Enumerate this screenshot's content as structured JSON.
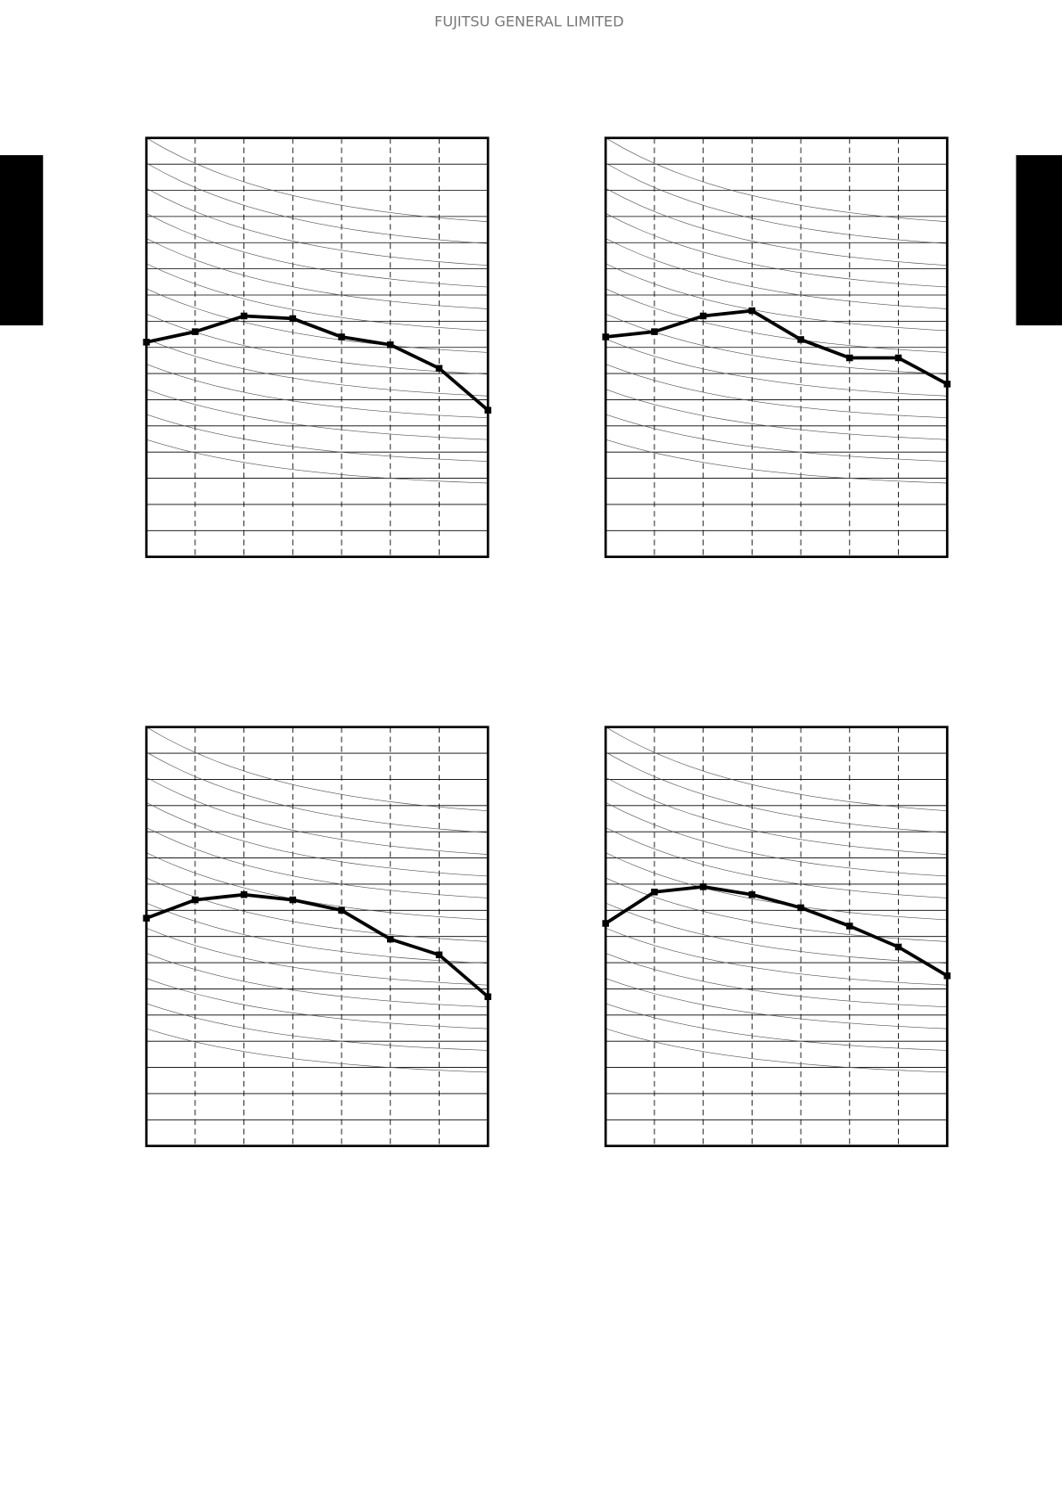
{
  "header": "FUJITSU GENERAL LIMITED",
  "chart_data": [
    {
      "type": "line",
      "categories": [
        null,
        null,
        null,
        null,
        null,
        null,
        null,
        null
      ],
      "values": [
        8.2,
        8.6,
        9.2,
        9.1,
        8.4,
        8.1,
        7.2,
        5.6
      ],
      "color": "#000000",
      "ylim": [
        0,
        16
      ],
      "yticks": [
        0,
        1,
        2,
        3,
        4,
        5,
        6,
        7,
        8,
        9,
        10,
        11,
        12,
        13,
        14,
        15,
        16
      ]
    },
    {
      "type": "line",
      "categories": [
        null,
        null,
        null,
        null,
        null,
        null,
        null,
        null
      ],
      "values": [
        8.4,
        8.6,
        9.2,
        9.4,
        8.3,
        7.6,
        7.6,
        6.6
      ],
      "color": "#000000",
      "ylim": [
        0,
        16
      ],
      "yticks": [
        0,
        1,
        2,
        3,
        4,
        5,
        6,
        7,
        8,
        9,
        10,
        11,
        12,
        13,
        14,
        15,
        16
      ]
    },
    {
      "type": "line",
      "categories": [
        null,
        null,
        null,
        null,
        null,
        null,
        null,
        null
      ],
      "values": [
        8.7,
        9.4,
        9.6,
        9.4,
        9.0,
        7.9,
        7.3,
        5.7
      ],
      "color": "#000000",
      "ylim": [
        0,
        16
      ],
      "yticks": [
        0,
        1,
        2,
        3,
        4,
        5,
        6,
        7,
        8,
        9,
        10,
        11,
        12,
        13,
        14,
        15,
        16
      ]
    },
    {
      "type": "line",
      "categories": [
        null,
        null,
        null,
        null,
        null,
        null,
        null,
        null
      ],
      "values": [
        8.5,
        9.7,
        9.9,
        9.6,
        9.1,
        8.4,
        7.6,
        6.5
      ],
      "color": "#000000",
      "ylim": [
        0,
        16
      ],
      "yticks": [
        0,
        1,
        2,
        3,
        4,
        5,
        6,
        7,
        8,
        9,
        10,
        11,
        12,
        13,
        14,
        15,
        16
      ]
    }
  ]
}
